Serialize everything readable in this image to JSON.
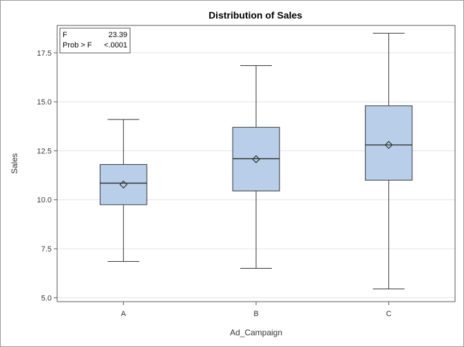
{
  "chart_data": {
    "type": "box",
    "title": "Distribution of Sales",
    "xlabel": "Ad_Campaign",
    "ylabel": "Sales",
    "ylim": [
      4.8,
      18.9
    ],
    "yticks": [
      "5.0",
      "7.5",
      "10.0",
      "12.5",
      "15.0",
      "17.5"
    ],
    "grid": true,
    "categories": [
      "A",
      "B",
      "C"
    ],
    "boxes": [
      {
        "category": "A",
        "min": 6.85,
        "q1": 9.75,
        "median": 10.85,
        "mean": 10.78,
        "q3": 11.8,
        "max": 14.1
      },
      {
        "category": "B",
        "min": 6.5,
        "q1": 10.45,
        "median": 12.1,
        "mean": 12.07,
        "q3": 13.7,
        "max": 16.85
      },
      {
        "category": "C",
        "min": 5.45,
        "q1": 11.0,
        "median": 12.8,
        "mean": 12.8,
        "q3": 14.8,
        "max": 18.5
      }
    ],
    "stats_box": {
      "placement": "top-left",
      "rows": [
        {
          "label": "F",
          "value": "23.39"
        },
        {
          "label": "Prob > F",
          "value": "<.0001"
        }
      ]
    }
  },
  "colors": {
    "box_fill": "#b9cfe9",
    "box_stroke": "#333333",
    "grid": "#e4e4e4",
    "axis": "#555555"
  }
}
